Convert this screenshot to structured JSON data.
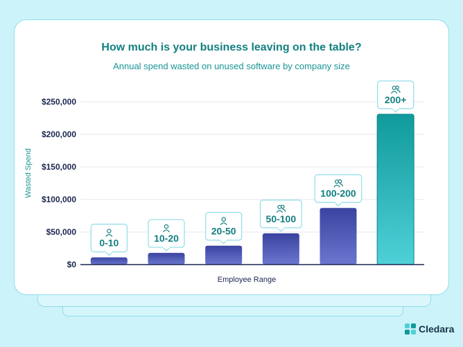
{
  "header": {
    "title": "How much is your business leaving on the table?",
    "subtitle": "Annual spend wasted on unused software by company size"
  },
  "brand": {
    "name": "Cledara",
    "logo_icon": "cledara-logo-icon"
  },
  "colors": {
    "title": "#137f80",
    "bar_top": "#3a44a0",
    "bar_bottom": "#6a76cf",
    "highlight_top": "#109a9b",
    "highlight_bottom": "#4fd0d8",
    "label_border": "#8fdde8",
    "axis_text": "#1a2650"
  },
  "chart_data": {
    "type": "bar",
    "title": "How much is your business leaving on the table?",
    "subtitle": "Annual spend wasted on unused software by company size",
    "xlabel": "Employee Range",
    "ylabel": "Wasted Spend",
    "categories": [
      "0-10",
      "10-20",
      "20-50",
      "50-100",
      "100-200",
      "200+"
    ],
    "values": [
      11000,
      18000,
      29000,
      48000,
      87000,
      231000
    ],
    "ylim": [
      0,
      250000
    ],
    "yticks": [
      0,
      50000,
      100000,
      150000,
      200000,
      250000
    ],
    "ytick_labels": [
      "$0",
      "$50,000",
      "$100,000",
      "$150,000",
      "$200,000",
      "$250,000"
    ],
    "highlight_index": 5,
    "grid": true,
    "legend": false
  }
}
